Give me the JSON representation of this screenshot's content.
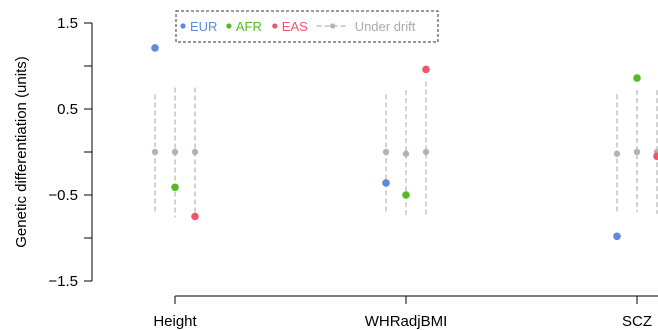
{
  "chart_data": {
    "type": "scatter",
    "ylabel": "Genetic differentiation (units)",
    "xlabel": "",
    "ylim": [
      -1.6,
      1.5
    ],
    "yticks": [
      1.5,
      0.5,
      -0.5,
      -1.5
    ],
    "yticks_minor": [
      1.0,
      0.0,
      -1.0
    ],
    "categories": [
      "Height",
      "WHRadjBMI",
      "SCZ"
    ],
    "legend": {
      "position": "top"
    },
    "series": [
      {
        "name": "EUR",
        "color": "#5b8bd9",
        "values": [
          1.21,
          -0.36,
          -0.98
        ]
      },
      {
        "name": "AFR",
        "color": "#55bb22",
        "values": [
          -0.41,
          -0.5,
          0.86
        ]
      },
      {
        "name": "EAS",
        "color": "#ee5566",
        "values": [
          -0.75,
          0.96,
          -0.05
        ]
      }
    ],
    "drift": {
      "name": "Under drift",
      "color": "#b3b3b3",
      "center": [
        [
          0.0,
          0.0,
          0.0
        ],
        [
          0.0,
          -0.02,
          0.0
        ],
        [
          -0.02,
          0.0,
          0.0
        ]
      ],
      "low": [
        [
          -0.7,
          -0.76,
          -0.76
        ],
        [
          -0.7,
          -0.76,
          -0.76
        ],
        [
          -0.7,
          -0.7,
          -0.72
        ]
      ],
      "high": [
        [
          0.67,
          0.75,
          0.75
        ],
        [
          0.67,
          0.72,
          0.82
        ],
        [
          0.67,
          0.72,
          0.72
        ]
      ]
    }
  }
}
